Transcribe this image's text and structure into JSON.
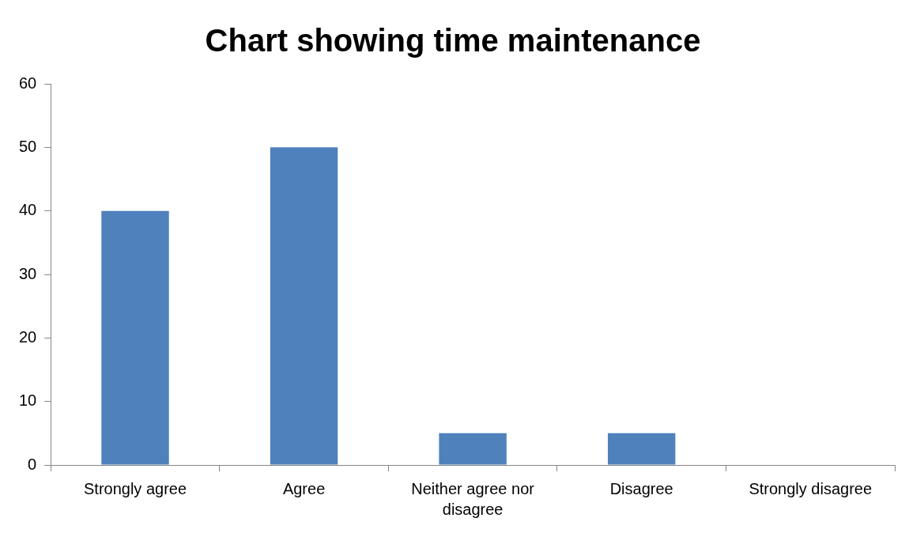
{
  "chart_data": {
    "type": "bar",
    "title": "Chart showing time maintenance",
    "categories": [
      "Strongly agree",
      "Agree",
      "Neither agree nor disagree",
      "Disagree",
      "Strongly disagree"
    ],
    "values": [
      40,
      50,
      5,
      5,
      0
    ],
    "color": "#4f81bd",
    "ylim": [
      0,
      60
    ],
    "yticks": [
      0,
      10,
      20,
      30,
      40,
      50,
      60
    ],
    "grid": false,
    "legend": false
  }
}
